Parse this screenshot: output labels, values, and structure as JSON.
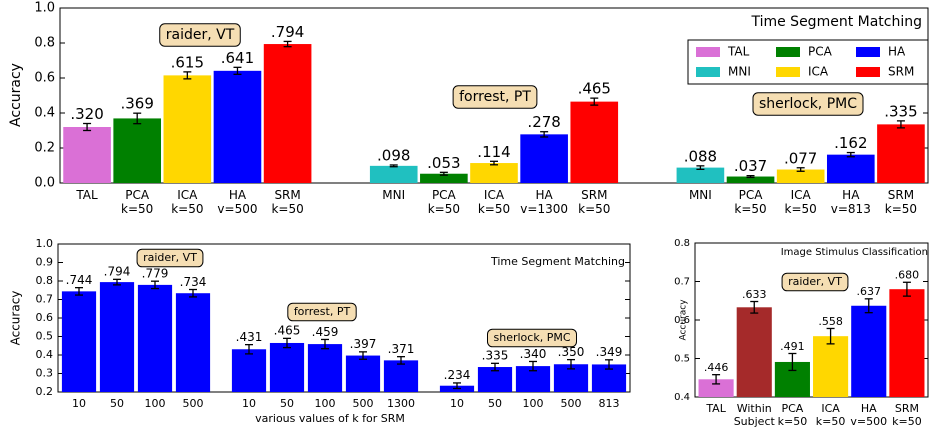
{
  "chart_data": [
    {
      "type": "bar",
      "title": "Time Segment Matching",
      "ylabel": "Accuracy",
      "ylim": [
        0,
        1
      ],
      "yticks": [
        {
          "value": 0,
          "label": "0.0"
        },
        0.2,
        0.4,
        0.6,
        0.8,
        {
          "value": 1,
          "label": "1.0"
        }
      ],
      "legend": [
        {
          "name": "TAL",
          "color": "#da70d6"
        },
        {
          "name": "PCA",
          "color": "#008000"
        },
        {
          "name": "HA",
          "color": "#0000ff"
        },
        {
          "name": "MNI",
          "color": "#20c0c0"
        },
        {
          "name": "ICA",
          "color": "#ffd700"
        },
        {
          "name": "SRM",
          "color": "#ff0000"
        }
      ],
      "groups": [
        {
          "annotation": "raider, VT",
          "categories": [
            [
              "TAL"
            ],
            [
              "PCA",
              "k=50"
            ],
            [
              "ICA",
              "k=50"
            ],
            [
              "HA",
              "v=500"
            ],
            [
              "SRM",
              "k=50"
            ]
          ],
          "values": [
            0.32,
            0.369,
            0.615,
            0.641,
            0.794
          ],
          "value_labels": [
            ".320",
            ".369",
            ".615",
            ".641",
            ".794"
          ],
          "errors": [
            0.02,
            0.03,
            0.02,
            0.02,
            0.015
          ],
          "colors": [
            "#da70d6",
            "#008000",
            "#ffd700",
            "#0000ff",
            "#ff0000"
          ]
        },
        {
          "annotation": "forrest, PT",
          "categories": [
            [
              "MNI"
            ],
            [
              "PCA",
              "k=50"
            ],
            [
              "ICA",
              "k=50"
            ],
            [
              "HA",
              "v=1300"
            ],
            [
              "SRM",
              "k=50"
            ]
          ],
          "values": [
            0.098,
            0.053,
            0.114,
            0.278,
            0.465
          ],
          "value_labels": [
            ".098",
            ".053",
            ".114",
            ".278",
            ".465"
          ],
          "errors": [
            0.005,
            0.008,
            0.01,
            0.015,
            0.02
          ],
          "colors": [
            "#20c0c0",
            "#008000",
            "#ffd700",
            "#0000ff",
            "#ff0000"
          ]
        },
        {
          "annotation": "sherlock, PMC",
          "categories": [
            [
              "MNI"
            ],
            [
              "PCA",
              "k=50"
            ],
            [
              "ICA",
              "k=50"
            ],
            [
              "HA",
              "v=813"
            ],
            [
              "SRM",
              "k=50"
            ]
          ],
          "values": [
            0.088,
            0.037,
            0.077,
            0.162,
            0.335
          ],
          "value_labels": [
            ".088",
            ".037",
            ".077",
            ".162",
            ".335"
          ],
          "errors": [
            0.01,
            0.005,
            0.01,
            0.012,
            0.02
          ],
          "colors": [
            "#20c0c0",
            "#008000",
            "#ffd700",
            "#0000ff",
            "#ff0000"
          ]
        }
      ]
    },
    {
      "type": "bar",
      "title": "Time Segment Matching",
      "ylabel": "Accuracy",
      "xlabel": "various values of k for SRM",
      "ylim": [
        0.2,
        1
      ],
      "yticks": [
        0.2,
        0.3,
        0.4,
        0.5,
        0.6,
        0.7,
        0.8,
        0.9,
        {
          "value": 1,
          "label": "1.0"
        }
      ],
      "color": "#0000ff",
      "groups": [
        {
          "annotation": "raider, VT",
          "categories": [
            [
              "10"
            ],
            [
              "50"
            ],
            [
              "100"
            ],
            [
              "500"
            ]
          ],
          "values": [
            0.744,
            0.794,
            0.779,
            0.734
          ],
          "value_labels": [
            ".744",
            ".794",
            ".779",
            ".734"
          ],
          "errors": [
            0.02,
            0.015,
            0.02,
            0.02
          ]
        },
        {
          "annotation": "forrest, PT",
          "categories": [
            [
              "10"
            ],
            [
              "50"
            ],
            [
              "100"
            ],
            [
              "500"
            ],
            [
              "1300"
            ]
          ],
          "values": [
            0.431,
            0.465,
            0.459,
            0.397,
            0.371
          ],
          "value_labels": [
            ".431",
            ".465",
            ".459",
            ".397",
            ".371"
          ],
          "errors": [
            0.025,
            0.025,
            0.025,
            0.02,
            0.02
          ]
        },
        {
          "annotation": "sherlock, PMC",
          "categories": [
            [
              "10"
            ],
            [
              "50"
            ],
            [
              "100"
            ],
            [
              "500"
            ],
            [
              "813"
            ]
          ],
          "values": [
            0.234,
            0.335,
            0.34,
            0.35,
            0.349
          ],
          "value_labels": [
            ".234",
            ".335",
            ".340",
            ".350",
            ".349"
          ],
          "errors": [
            0.015,
            0.02,
            0.025,
            0.025,
            0.025
          ]
        }
      ]
    },
    {
      "type": "bar",
      "title": "Image Stimulus Classification",
      "ylabel": "Accuracy",
      "ylim": [
        0.4,
        0.8
      ],
      "yticks": [
        0.4,
        0.5,
        0.6,
        0.7,
        0.8
      ],
      "groups": [
        {
          "annotation": "raider, VT",
          "categories": [
            [
              "TAL"
            ],
            [
              "Within",
              "Subject"
            ],
            [
              "PCA",
              "k=50"
            ],
            [
              "ICA",
              "k=50"
            ],
            [
              "HA",
              "v=500"
            ],
            [
              "SRM",
              "k=50"
            ]
          ],
          "values": [
            0.446,
            0.633,
            0.491,
            0.558,
            0.637,
            0.68
          ],
          "value_labels": [
            ".446",
            ".633",
            ".491",
            ".558",
            ".637",
            ".680"
          ],
          "errors": [
            0.012,
            0.015,
            0.022,
            0.02,
            0.018,
            0.018
          ],
          "colors": [
            "#da70d6",
            "#a52a2a",
            "#008000",
            "#ffd700",
            "#0000ff",
            "#ff0000"
          ]
        }
      ]
    }
  ]
}
